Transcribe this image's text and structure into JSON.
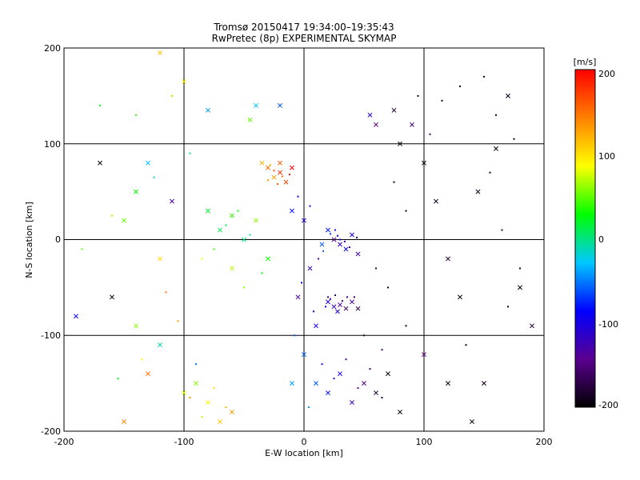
{
  "chart_data": {
    "type": "scatter",
    "title": "Tromsø 20150417 19:34:00–19:35:43",
    "subtitle": "RwPretec (8p) EXPERIMENTAL SKYMAP",
    "xlabel": "E-W location [km]",
    "ylabel": "N-S location [km]",
    "xlim": [
      -200,
      200
    ],
    "ylim": [
      -200,
      200
    ],
    "x_ticks": [
      "-200",
      "-100",
      "0",
      "100",
      "200"
    ],
    "y_ticks": [
      "200",
      "100",
      "0",
      "-100",
      "-200"
    ],
    "x_grid": [
      -100,
      0,
      100
    ],
    "y_grid": [
      100,
      0,
      -100
    ],
    "grid": true,
    "colorbar": {
      "label": "[m/s]",
      "range": [
        -200,
        200
      ],
      "ticks": [
        "200",
        "100",
        "0",
        "-100",
        "-200"
      ],
      "placement": "right",
      "colors": [
        "#000000",
        "#5a0090",
        "#0000ff",
        "#00c8ff",
        "#00ff00",
        "#ffff00",
        "#ff8000",
        "#ff0000"
      ]
    },
    "series": [
      {
        "marker": "x",
        "points": [
          [
            25,
            -70,
            -120
          ],
          [
            30,
            -68,
            -140
          ],
          [
            35,
            -72,
            -160
          ],
          [
            28,
            -75,
            -110
          ],
          [
            40,
            -65,
            -130
          ],
          [
            20,
            -65,
            -100
          ],
          [
            45,
            -72,
            -170
          ],
          [
            30,
            -5,
            -120
          ],
          [
            35,
            -10,
            -90
          ],
          [
            25,
            0,
            -150
          ],
          [
            40,
            5,
            -100
          ],
          [
            20,
            10,
            -80
          ],
          [
            45,
            -15,
            -130
          ],
          [
            15,
            -5,
            -60
          ],
          [
            -30,
            75,
            150
          ],
          [
            -20,
            70,
            180
          ],
          [
            -25,
            65,
            130
          ],
          [
            -15,
            60,
            170
          ],
          [
            -35,
            80,
            120
          ],
          [
            -10,
            75,
            200
          ],
          [
            -20,
            80,
            160
          ],
          [
            -60,
            25,
            40
          ],
          [
            -80,
            30,
            20
          ],
          [
            -40,
            20,
            60
          ],
          [
            -70,
            10,
            10
          ],
          [
            -50,
            0,
            0
          ],
          [
            -30,
            -20,
            30
          ],
          [
            -60,
            -30,
            70
          ],
          [
            10,
            -150,
            -60
          ],
          [
            20,
            -160,
            -80
          ],
          [
            30,
            -140,
            -100
          ],
          [
            40,
            -170,
            -120
          ],
          [
            50,
            -150,
            -150
          ],
          [
            60,
            -160,
            -180
          ],
          [
            70,
            -140,
            -200
          ],
          [
            -70,
            -190,
            110
          ],
          [
            -80,
            -170,
            90
          ],
          [
            -90,
            -150,
            60
          ],
          [
            -60,
            -180,
            130
          ],
          [
            -100,
            -160,
            80
          ],
          [
            170,
            150,
            -190
          ],
          [
            160,
            95,
            -200
          ],
          [
            145,
            50,
            -190
          ],
          [
            180,
            -50,
            -200
          ],
          [
            190,
            -90,
            -180
          ],
          [
            150,
            -150,
            -190
          ],
          [
            140,
            -190,
            -200
          ],
          [
            -110,
            40,
            -130
          ],
          [
            -160,
            -60,
            -190
          ],
          [
            -190,
            -80,
            -90
          ],
          [
            -170,
            80,
            -200
          ],
          [
            -130,
            -140,
            150
          ],
          [
            -150,
            -190,
            140
          ],
          [
            60,
            120,
            -150
          ],
          [
            75,
            135,
            -180
          ],
          [
            90,
            120,
            -160
          ],
          [
            55,
            130,
            -110
          ],
          [
            80,
            100,
            -200
          ],
          [
            -80,
            135,
            -40
          ],
          [
            -40,
            140,
            -30
          ],
          [
            -20,
            140,
            -60
          ],
          [
            -100,
            165,
            90
          ],
          [
            -120,
            195,
            110
          ],
          [
            -45,
            125,
            50
          ],
          [
            100,
            80,
            -200
          ],
          [
            110,
            40,
            -190
          ],
          [
            120,
            -20,
            -180
          ],
          [
            130,
            -60,
            -200
          ],
          [
            100,
            -120,
            -150
          ],
          [
            120,
            -150,
            -190
          ],
          [
            80,
            -180,
            -200
          ],
          [
            -10,
            30,
            -80
          ],
          [
            0,
            20,
            -100
          ],
          [
            5,
            -30,
            -120
          ],
          [
            -5,
            -60,
            -140
          ],
          [
            10,
            -90,
            -100
          ],
          [
            0,
            -120,
            -60
          ],
          [
            -10,
            -150,
            -40
          ],
          [
            -130,
            80,
            -30
          ],
          [
            -140,
            50,
            30
          ],
          [
            -150,
            20,
            50
          ],
          [
            -120,
            -20,
            100
          ],
          [
            -140,
            -90,
            60
          ],
          [
            -120,
            -110,
            -10
          ]
        ]
      },
      {
        "marker": "dot",
        "points": [
          [
            20,
            -60,
            -150
          ],
          [
            22,
            -62,
            -130
          ],
          [
            26,
            -58,
            -170
          ],
          [
            32,
            -64,
            -140
          ],
          [
            36,
            -60,
            -120
          ],
          [
            18,
            -70,
            -100
          ],
          [
            42,
            -60,
            -160
          ],
          [
            30,
            0,
            -110
          ],
          [
            28,
            4,
            -90
          ],
          [
            34,
            -2,
            -130
          ],
          [
            22,
            6,
            -70
          ],
          [
            38,
            -8,
            -150
          ],
          [
            26,
            10,
            -80
          ],
          [
            44,
            2,
            -170
          ],
          [
            16,
            -12,
            -60
          ],
          [
            -25,
            72,
            170
          ],
          [
            -18,
            66,
            150
          ],
          [
            -30,
            62,
            130
          ],
          [
            -12,
            68,
            190
          ],
          [
            -28,
            78,
            110
          ],
          [
            -22,
            58,
            160
          ],
          [
            -55,
            30,
            30
          ],
          [
            -65,
            15,
            10
          ],
          [
            -45,
            5,
            -10
          ],
          [
            -75,
            -10,
            40
          ],
          [
            -35,
            -35,
            20
          ],
          [
            -50,
            -50,
            60
          ],
          [
            -85,
            -20,
            80
          ],
          [
            15,
            -130,
            -90
          ],
          [
            25,
            -145,
            -110
          ],
          [
            35,
            -125,
            -130
          ],
          [
            45,
            -155,
            -150
          ],
          [
            55,
            -135,
            -170
          ],
          [
            65,
            -165,
            -190
          ],
          [
            -65,
            -175,
            120
          ],
          [
            -75,
            -155,
            100
          ],
          [
            -85,
            -185,
            70
          ],
          [
            -95,
            -165,
            140
          ],
          [
            160,
            130,
            -200
          ],
          [
            175,
            105,
            -190
          ],
          [
            155,
            70,
            -200
          ],
          [
            165,
            10,
            -180
          ],
          [
            180,
            -30,
            -200
          ],
          [
            170,
            -70,
            -190
          ],
          [
            135,
            -110,
            -200
          ],
          [
            95,
            150,
            -200
          ],
          [
            115,
            145,
            -190
          ],
          [
            130,
            160,
            -200
          ],
          [
            150,
            170,
            -180
          ],
          [
            105,
            110,
            -160
          ],
          [
            -5,
            45,
            -90
          ],
          [
            5,
            35,
            -110
          ],
          [
            12,
            -20,
            -130
          ],
          [
            -2,
            -45,
            -80
          ],
          [
            8,
            -75,
            -100
          ],
          [
            -8,
            -100,
            -60
          ],
          [
            4,
            -175,
            -40
          ],
          [
            -140,
            130,
            40
          ],
          [
            -170,
            140,
            20
          ],
          [
            -110,
            150,
            60
          ],
          [
            -95,
            90,
            0
          ],
          [
            -125,
            65,
            -20
          ],
          [
            -160,
            25,
            70
          ],
          [
            -185,
            -10,
            50
          ],
          [
            -115,
            -55,
            150
          ],
          [
            -105,
            -85,
            130
          ],
          [
            -135,
            -125,
            90
          ],
          [
            -155,
            -145,
            20
          ],
          [
            -90,
            -130,
            -50
          ],
          [
            60,
            -30,
            -170
          ],
          [
            70,
            -50,
            -190
          ],
          [
            85,
            -90,
            -200
          ],
          [
            50,
            -100,
            -180
          ],
          [
            65,
            -115,
            -160
          ],
          [
            75,
            60,
            -190
          ],
          [
            85,
            30,
            -200
          ]
        ]
      }
    ]
  }
}
